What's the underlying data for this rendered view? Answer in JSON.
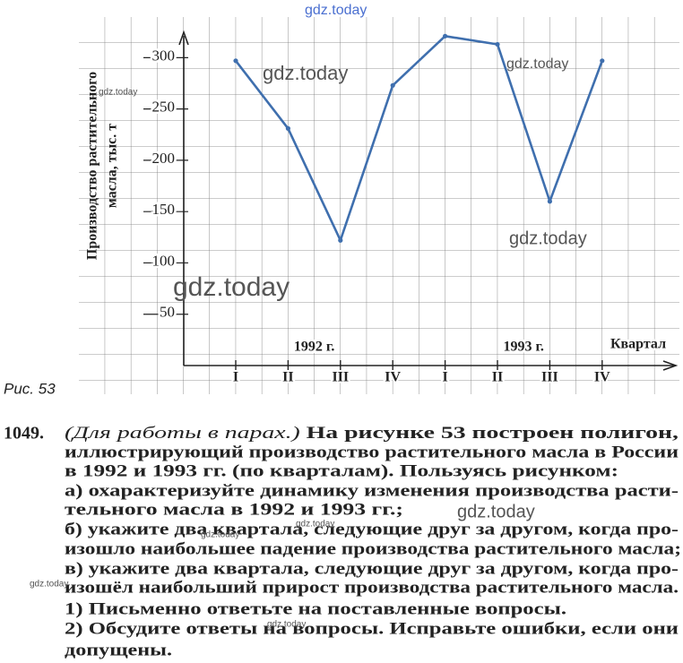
{
  "chart_data": {
    "type": "line",
    "y_label": [
      "Производство растительного",
      "масла, тыс. т"
    ],
    "x_label": "Квартал",
    "categories": [
      "I",
      "II",
      "III",
      "IV",
      "I",
      "II",
      "III",
      "IV"
    ],
    "groups": [
      {
        "label": "1992 г.",
        "span": [
          0,
          3
        ]
      },
      {
        "label": "1993 г.",
        "span": [
          4,
          7
        ]
      }
    ],
    "series": [
      {
        "name": null,
        "color": "#3f6fae",
        "values": [
          297,
          231,
          122,
          273,
          321,
          313,
          160,
          297
        ]
      }
    ],
    "ylim": [
      0,
      330
    ],
    "yticks": [
      50,
      100,
      150,
      200,
      250,
      300
    ],
    "grid": true
  },
  "figure_caption": "Рис. 53",
  "exercise": {
    "number": "1049.",
    "intro": "(Для работы в парах.)",
    "lines": [
      " На рисунке 53 построен полигон,",
      "иллюстрирующий производство растительного масла в России",
      "в 1992 и 1993 гг. (по кварталам). Пользуясь рисунком:",
      "а) охарактеризуйте динамику изменения производства расти-",
      "тельного масла в 1992 и 1993 гг.;",
      "б) укажите два квартала, следующие друг за другом, когда про-",
      "изошло наибольшее падение производства растительного масла;",
      "в) укажите два квартала, следующие друг за другом, когда про-",
      "изошёл наибольший прирост производства растительного масла.",
      "1) Письменно ответьте на поставленные вопросы.",
      "2) Обсудите ответы на вопросы. Исправьте ошибки, если они",
      "допущены."
    ]
  },
  "watermarks": [
    "gdz.today",
    "gdz.today",
    "gdz.today",
    "gdz.today",
    "gdz.today",
    "gdz.today",
    "gdz.today",
    "gdz.today",
    "gdz.today",
    "gdz.today",
    "gdz.today"
  ]
}
